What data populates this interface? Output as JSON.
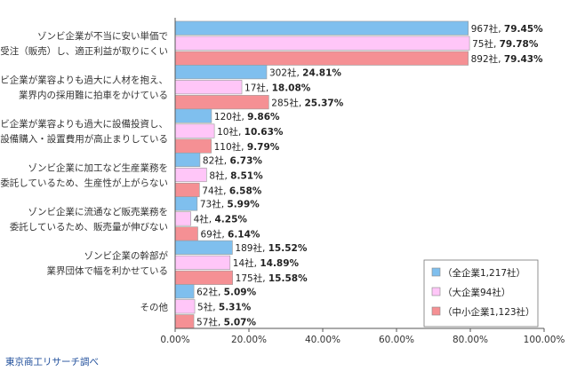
{
  "chart_data": {
    "type": "bar",
    "orientation": "horizontal",
    "categories": [
      [
        "ゾンビ企業が不当に安い単価で",
        "受注（販売）し、適正利益が取りにくい"
      ],
      [
        "ゾンビ企業が業容よりも過大に人材を抱え、",
        "業界内の採用難に拍車をかけている"
      ],
      [
        "ゾンビ企業が業容よりも過大に設備投資し、",
        "設備購入・設置費用が高止まりしている"
      ],
      [
        "ゾンビ企業に加工など生産業務を",
        "委託しているため、生産性が上がらない"
      ],
      [
        "ゾンビ企業に流通など販売業務を",
        "委託しているため、販売量が伸びない"
      ],
      [
        "ゾンビ企業の幹部が",
        "業界団体で幅を利かせている"
      ],
      [
        "その他"
      ]
    ],
    "series": [
      {
        "name": "（全企業1,217社）",
        "color": "#7fbfee",
        "values": [
          79.45,
          24.81,
          9.86,
          6.73,
          5.99,
          15.52,
          5.09
        ],
        "counts": [
          "967社",
          "302社",
          "120社",
          "82社",
          "73社",
          "189社",
          "62社"
        ],
        "labels": [
          "79.45%",
          "24.81%",
          "9.86%",
          "6.73%",
          "5.99%",
          "15.52%",
          "5.09%"
        ]
      },
      {
        "name": "（大企業94社）",
        "color": "#ffc6f8",
        "values": [
          79.78,
          18.08,
          10.63,
          8.51,
          4.25,
          14.89,
          5.31
        ],
        "counts": [
          "75社",
          "17社",
          "10社",
          "8社",
          "4社",
          "14社",
          "5社"
        ],
        "labels": [
          "79.78%",
          "18.08%",
          "10.63%",
          "8.51%",
          "4.25%",
          "14.89%",
          "5.31%"
        ]
      },
      {
        "name": "（中小企業1,123社）",
        "color": "#f59094",
        "values": [
          79.43,
          25.37,
          9.79,
          6.58,
          6.14,
          15.58,
          5.07
        ],
        "counts": [
          "892社",
          "285社",
          "110社",
          "74社",
          "69社",
          "175社",
          "57社"
        ],
        "labels": [
          "79.43%",
          "25.37%",
          "9.79%",
          "6.58%",
          "6.14%",
          "15.58%",
          "5.07%"
        ]
      }
    ],
    "xlim": [
      0,
      100
    ],
    "xticks": [
      0,
      20,
      40,
      60,
      80,
      100
    ],
    "xtick_labels": [
      "0.00%",
      "20.00%",
      "40.00%",
      "60.00%",
      "80.00%",
      "100.00%"
    ],
    "legend_position": "bottom-right",
    "grid": false,
    "source_text": "東京商工リサーチ調べ"
  }
}
